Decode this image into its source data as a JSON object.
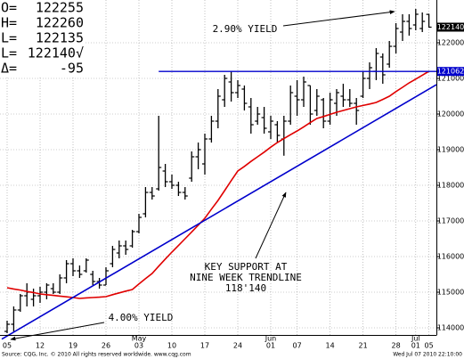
{
  "chart_data": {
    "type": "ohlc",
    "readout": [
      {
        "label": "O=",
        "value": "122255"
      },
      {
        "label": "H=",
        "value": "122260"
      },
      {
        "label": "L=",
        "value": "122135"
      },
      {
        "label": "L=",
        "value": "122140√"
      },
      {
        "label": "Δ=",
        "value": "-95"
      }
    ],
    "categories": [
      "05",
      null,
      null,
      null,
      null,
      "12",
      null,
      null,
      null,
      null,
      "19",
      null,
      null,
      null,
      null,
      "26",
      null,
      null,
      null,
      null,
      "03",
      null,
      null,
      null,
      null,
      "10",
      null,
      null,
      null,
      null,
      "17",
      null,
      null,
      null,
      null,
      "24",
      null,
      null,
      null,
      null,
      "01",
      null,
      null,
      null,
      "07",
      null,
      null,
      null,
      null,
      "14",
      null,
      null,
      null,
      null,
      "21",
      null,
      null,
      null,
      null,
      "28",
      null,
      null,
      "01",
      null,
      "05"
    ],
    "months": [
      null,
      null,
      null,
      null,
      null,
      null,
      null,
      null,
      null,
      null,
      null,
      null,
      null,
      null,
      null,
      null,
      null,
      null,
      null,
      null,
      "May",
      null,
      null,
      null,
      null,
      null,
      null,
      null,
      null,
      null,
      null,
      null,
      null,
      null,
      null,
      null,
      null,
      null,
      null,
      null,
      "Jun",
      null,
      null,
      null,
      null,
      null,
      null,
      null,
      null,
      null,
      null,
      null,
      null,
      null,
      null,
      null,
      null,
      null,
      null,
      null,
      null,
      null,
      "Jul",
      null,
      null
    ],
    "open": [
      113.9,
      114.1,
      114.5,
      114.9,
      114.8,
      114.9,
      115.0,
      115.1,
      115.0,
      115.4,
      115.8,
      115.6,
      115.6,
      115.5,
      115.3,
      115.2,
      115.8,
      116.1,
      116.3,
      116.3,
      116.7,
      117.2,
      117.8,
      117.9,
      118.4,
      118.1,
      118.0,
      117.8,
      118.2,
      118.8,
      118.6,
      119.3,
      119.8,
      120.4,
      120.9,
      120.6,
      120.7,
      120.2,
      119.8,
      119.9,
      119.5,
      119.7,
      119.3,
      119.8,
      120.5,
      120.4,
      120.8,
      120.1,
      120.4,
      119.8,
      120.3,
      120.5,
      120.4,
      120.3,
      120.5,
      121.0,
      121.2,
      121.6,
      121.4,
      121.9,
      122.3,
      122.6,
      122.5,
      122.4,
      122.796875
    ],
    "high": [
      114.2,
      114.6,
      114.95,
      115.25,
      115.1,
      115.15,
      115.25,
      115.25,
      115.5,
      115.9,
      115.95,
      115.75,
      115.95,
      115.6,
      115.4,
      115.7,
      116.3,
      116.45,
      116.45,
      116.75,
      117.2,
      117.95,
      117.95,
      119.95,
      118.6,
      118.3,
      118.1,
      117.95,
      118.95,
      119.2,
      119.45,
      119.95,
      120.7,
      121.1,
      121.2,
      120.95,
      120.8,
      120.45,
      120.2,
      120.2,
      119.95,
      119.8,
      119.95,
      120.8,
      120.95,
      121.05,
      120.8,
      120.7,
      120.45,
      120.6,
      120.7,
      120.85,
      120.7,
      120.45,
      121.2,
      121.45,
      121.85,
      121.7,
      122.05,
      122.55,
      122.8,
      122.8,
      122.95,
      122.85,
      122.8125
    ],
    "low": [
      113.85,
      113.9,
      114.45,
      114.6,
      114.6,
      114.7,
      114.8,
      114.95,
      114.95,
      115.25,
      115.45,
      115.4,
      115.55,
      115.2,
      115.1,
      115.2,
      115.7,
      115.95,
      116.05,
      116.25,
      116.65,
      117.1,
      117.6,
      117.85,
      117.95,
      117.9,
      117.7,
      117.6,
      118.1,
      118.45,
      118.3,
      119.2,
      119.6,
      120.2,
      120.35,
      120.45,
      120.1,
      119.45,
      119.7,
      119.45,
      119.3,
      119.2,
      118.83,
      119.7,
      119.95,
      120.2,
      119.7,
      119.95,
      119.6,
      119.7,
      119.95,
      120.2,
      120.2,
      119.7,
      120.45,
      120.7,
      120.95,
      120.85,
      121.3,
      121.7,
      122.05,
      122.2,
      122.35,
      122.3,
      122.421875
    ],
    "close": [
      114.1,
      114.5,
      114.9,
      115.0,
      114.9,
      115.0,
      115.2,
      115.0,
      115.4,
      115.8,
      115.6,
      115.5,
      115.9,
      115.3,
      115.2,
      115.6,
      116.2,
      116.3,
      116.2,
      116.7,
      117.1,
      117.8,
      117.7,
      118.5,
      118.1,
      118.0,
      117.8,
      117.7,
      118.8,
      119.0,
      119.3,
      119.8,
      120.5,
      121.0,
      120.6,
      120.8,
      120.3,
      119.7,
      120.0,
      119.6,
      119.8,
      119.4,
      119.8,
      120.6,
      120.4,
      120.9,
      120.0,
      120.5,
      119.8,
      120.4,
      120.6,
      120.4,
      120.3,
      120.1,
      121.0,
      121.3,
      121.7,
      121.1,
      121.9,
      122.4,
      122.6,
      122.4,
      122.8,
      122.6,
      122.4375
    ],
    "color": "#000000",
    "moving_average": {
      "color": "#e00000",
      "values": [
        115.125,
        115.09,
        115.06,
        115.02,
        114.99,
        114.95,
        114.93,
        114.91,
        114.89,
        114.87,
        114.85,
        114.825,
        114.84,
        114.85,
        114.86,
        114.875,
        114.93,
        114.98,
        115.03,
        115.075,
        115.23,
        115.38,
        115.525,
        115.73,
        115.93,
        116.125,
        116.31,
        116.5,
        116.69,
        116.88,
        117.075,
        117.33,
        117.575,
        117.85,
        118.13,
        118.4,
        118.53,
        118.67,
        118.8,
        118.93,
        119.07,
        119.2,
        119.31,
        119.42,
        119.525,
        119.64,
        119.76,
        119.875,
        119.93,
        119.99,
        120.05,
        120.1,
        120.15,
        120.2,
        120.24,
        120.28,
        120.325,
        120.41,
        120.5,
        120.63,
        120.75,
        120.875,
        120.98,
        121.09,
        121.2
      ]
    },
    "trendline": {
      "color": "#0000cc",
      "values": [
        113.77,
        120.7
      ]
    },
    "price_markers": [
      {
        "value": 122.4375,
        "label": "122140",
        "color": "#000000"
      },
      {
        "value": 121.1953125,
        "label": "121062",
        "color": "#0000cc"
      }
    ],
    "ylim": [
      113.8,
      123.2
    ],
    "yticks": [
      {
        "value": 114,
        "label": "114000"
      },
      {
        "value": 115,
        "label": "115000"
      },
      {
        "value": 116,
        "label": "116000"
      },
      {
        "value": 117,
        "label": "117000"
      },
      {
        "value": 118,
        "label": "118000"
      },
      {
        "value": 119,
        "label": "119000"
      },
      {
        "value": 120,
        "label": "120000"
      },
      {
        "value": 121,
        "label": "121000"
      },
      {
        "value": 122,
        "label": "122000"
      }
    ],
    "grid": true,
    "annotations": [
      {
        "lines": [
          "2.90% YIELD"
        ]
      },
      {
        "lines": [
          "4.00% YIELD"
        ]
      },
      {
        "lines": [
          "KEY SUPPORT AT",
          "NINE WEEK TRENDLINE",
          "118'140"
        ]
      }
    ],
    "source": "Source: CQG, Inc. © 2010 All rights reserved worldwide. www.cqg.com",
    "timestamp": "Wed Jul 07 2010 22:10:00"
  }
}
